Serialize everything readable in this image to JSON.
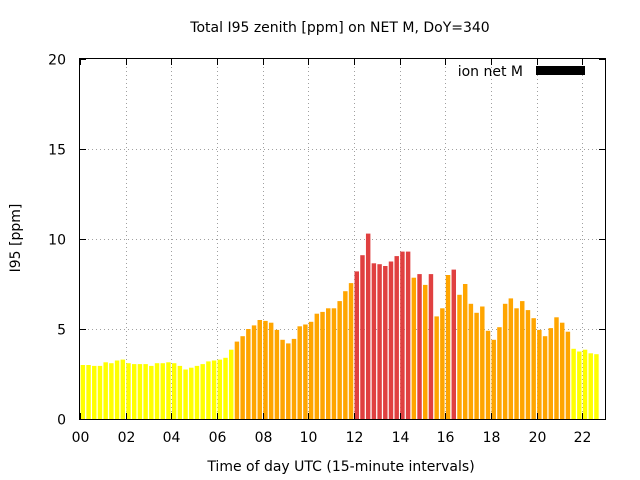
{
  "chart_data": {
    "type": "bar",
    "title": "Total I95 zenith [ppm] on NET M, DoY=340",
    "xlabel": "Time of day UTC (15-minute intervals)",
    "ylabel": "I95 [ppm]",
    "xlim": [
      0,
      23
    ],
    "ylim": [
      0,
      20
    ],
    "x_ticks": [
      "00",
      "02",
      "04",
      "06",
      "08",
      "10",
      "12",
      "14",
      "16",
      "18",
      "20",
      "22"
    ],
    "y_ticks": [
      "0",
      "5",
      "10",
      "15",
      "20"
    ],
    "grid": true,
    "legend": {
      "label": "ion net M",
      "color": "#000000",
      "position": "top-right"
    },
    "bin_hours": 0.25,
    "colors": {
      "low": "#ffff00",
      "mid": "#ffa500",
      "high": "#e04040"
    },
    "values": [
      3.0,
      3.0,
      2.95,
      2.95,
      3.15,
      3.1,
      3.25,
      3.3,
      3.1,
      3.05,
      3.05,
      3.05,
      2.95,
      3.1,
      3.1,
      3.15,
      3.1,
      2.95,
      2.75,
      2.85,
      2.95,
      3.05,
      3.2,
      3.25,
      3.3,
      3.4,
      3.85,
      4.3,
      4.6,
      5.0,
      5.2,
      5.5,
      5.45,
      5.35,
      4.95,
      4.4,
      4.2,
      4.45,
      5.15,
      5.25,
      5.4,
      5.85,
      5.95,
      6.15,
      6.15,
      6.55,
      7.1,
      7.55,
      8.2,
      9.1,
      10.3,
      8.65,
      8.6,
      8.5,
      8.75,
      9.05,
      9.3,
      9.3,
      7.85,
      8.05,
      7.45,
      8.05,
      5.7,
      6.15,
      8.0,
      8.3,
      6.9,
      7.5,
      6.4,
      5.9,
      6.25,
      4.9,
      4.4,
      5.1,
      6.4,
      6.7,
      6.15,
      6.55,
      6.05,
      5.6,
      4.95,
      4.6,
      5.05,
      5.65,
      5.35,
      4.85,
      3.9,
      3.75,
      3.85,
      3.65,
      3.6
    ],
    "levels": [
      "low",
      "low",
      "low",
      "low",
      "low",
      "low",
      "low",
      "low",
      "low",
      "low",
      "low",
      "low",
      "low",
      "low",
      "low",
      "low",
      "low",
      "low",
      "low",
      "low",
      "low",
      "low",
      "low",
      "low",
      "low",
      "low",
      "low",
      "mid",
      "mid",
      "mid",
      "mid",
      "mid",
      "mid",
      "mid",
      "mid",
      "mid",
      "mid",
      "mid",
      "mid",
      "mid",
      "mid",
      "mid",
      "mid",
      "mid",
      "mid",
      "mid",
      "mid",
      "mid",
      "high",
      "high",
      "high",
      "high",
      "high",
      "high",
      "high",
      "high",
      "high",
      "high",
      "mid",
      "high",
      "mid",
      "high",
      "mid",
      "mid",
      "mid",
      "high",
      "mid",
      "mid",
      "mid",
      "mid",
      "mid",
      "mid",
      "mid",
      "mid",
      "mid",
      "mid",
      "mid",
      "mid",
      "mid",
      "mid",
      "mid",
      "mid",
      "mid",
      "mid",
      "mid",
      "mid",
      "low",
      "low",
      "low",
      "low",
      "low"
    ]
  }
}
